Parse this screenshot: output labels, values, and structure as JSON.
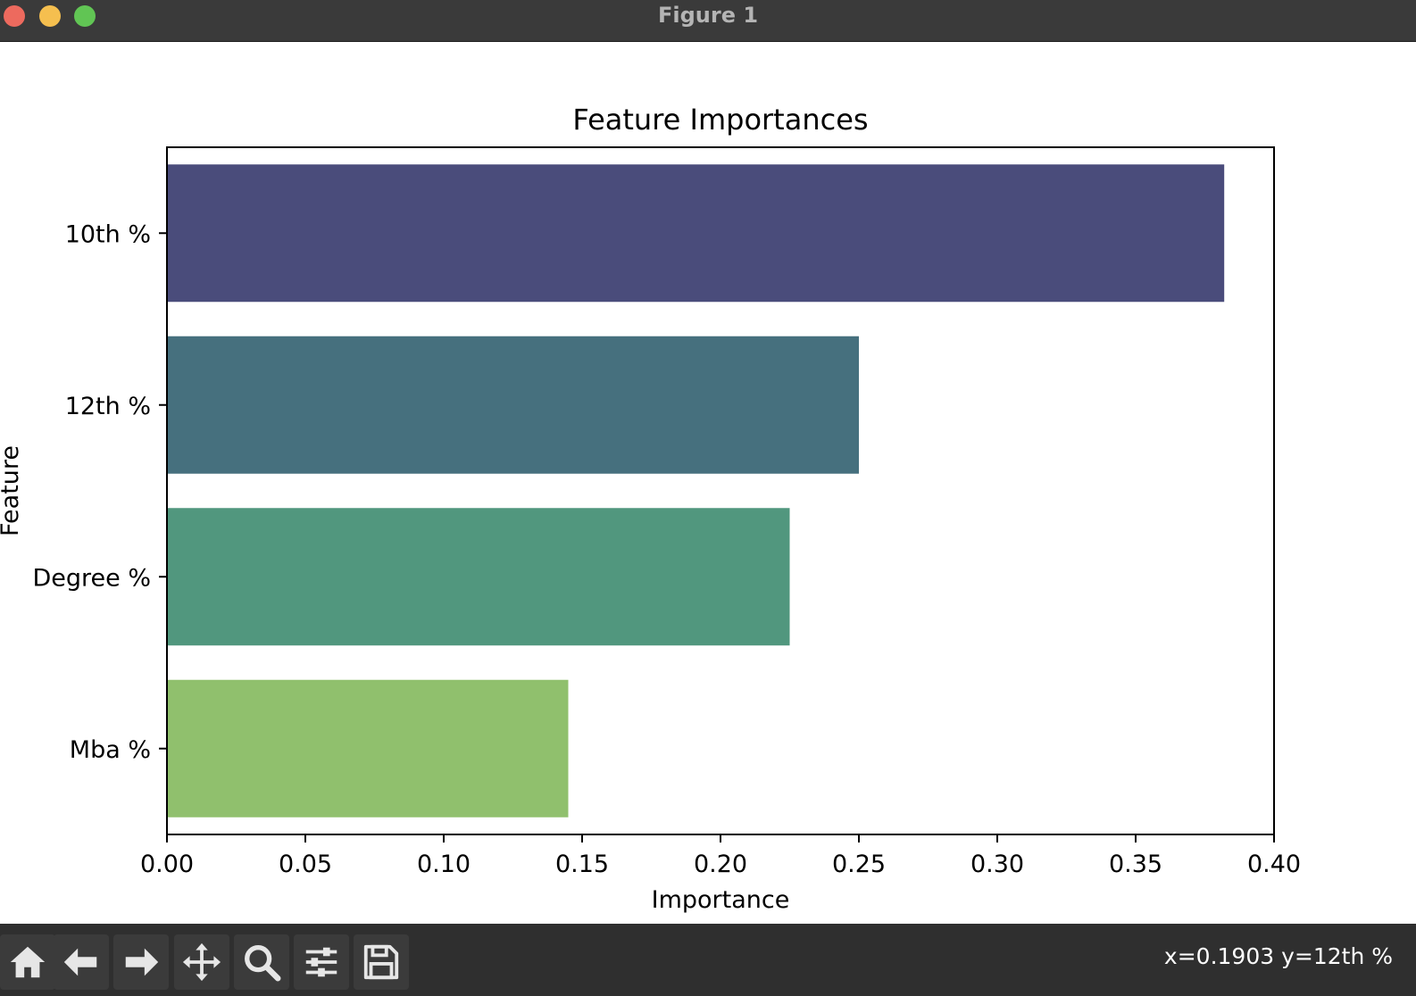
{
  "window": {
    "title": "Figure 1"
  },
  "toolbar": {
    "buttons": [
      {
        "icon": "home-icon"
      },
      {
        "icon": "back-arrow-icon"
      },
      {
        "icon": "forward-arrow-icon"
      },
      {
        "icon": "pan-move-icon"
      },
      {
        "icon": "zoom-magnifier-icon"
      },
      {
        "icon": "configure-subplots-icon"
      },
      {
        "icon": "save-disk-icon"
      }
    ],
    "coordinates": "x=0.1903 y=12th %"
  },
  "chart_data": {
    "type": "bar",
    "orientation": "horizontal",
    "title": "Feature Importances",
    "xlabel": "Importance",
    "ylabel": "Feature",
    "categories": [
      "10th %",
      "12th %",
      "Degree %",
      "Mba %"
    ],
    "values": [
      0.382,
      0.25,
      0.225,
      0.145
    ],
    "colors": [
      "#4a4c7b",
      "#46707e",
      "#51977e",
      "#90c06d"
    ],
    "xlim": [
      0,
      0.4
    ],
    "xticks": [
      "0.00",
      "0.05",
      "0.10",
      "0.15",
      "0.20",
      "0.25",
      "0.30",
      "0.35",
      "0.40"
    ],
    "grid": false
  }
}
